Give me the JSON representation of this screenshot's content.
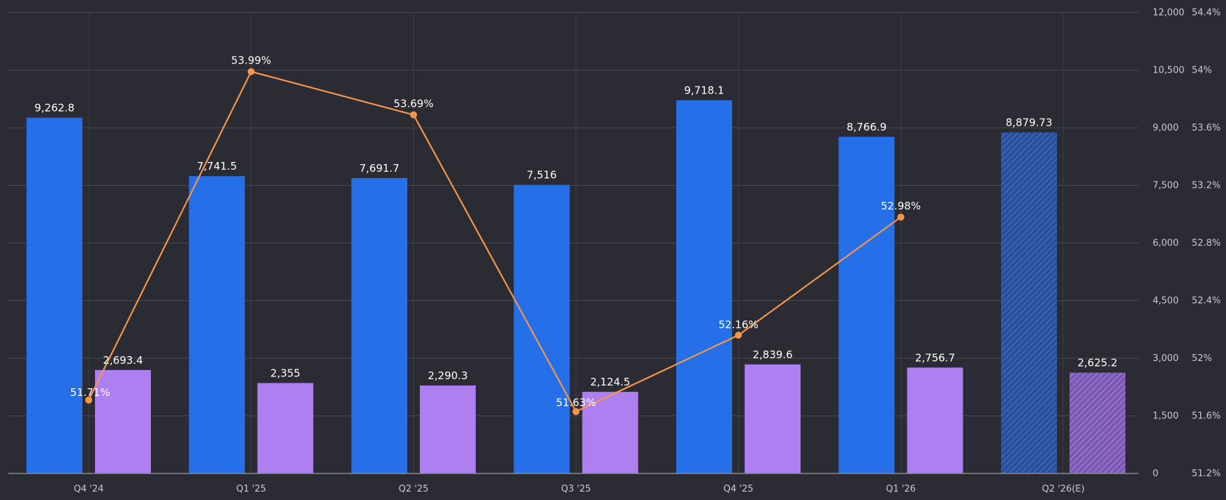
{
  "chart_data": {
    "type": "bar",
    "categories": [
      "Q4 '24",
      "Q1 '25",
      "Q2 '25",
      "Q3 '25",
      "Q4 '25",
      "Q1 '26",
      "Q2 '26(E)"
    ],
    "estimate_categories": [
      "Q2 '26(E)"
    ],
    "series": [
      {
        "values": [
          9262.8,
          7741.5,
          7691.7,
          7516,
          9718.1,
          8766.9,
          8879.73
        ],
        "labels": [
          "9,262.8",
          "7,741.5",
          "7,691.7",
          "7,516",
          "9,718.1",
          "8,766.9",
          "8,879.73"
        ],
        "color": "#2570e8",
        "type": "bar",
        "axis": "left"
      },
      {
        "values": [
          2693.4,
          2355,
          2290.3,
          2124.5,
          2839.6,
          2756.7,
          2625.2
        ],
        "labels": [
          "2,693.4",
          "2,355",
          "2,290.3",
          "2,124.5",
          "2,839.6",
          "2,756.7",
          "2,625.2"
        ],
        "color": "#ae7ff0",
        "type": "bar",
        "axis": "left"
      },
      {
        "values": [
          51.71,
          53.99,
          53.69,
          51.63,
          52.16,
          52.98,
          null
        ],
        "labels": [
          "51.71%",
          "53.99%",
          "53.69%",
          "51.63%",
          "52.16%",
          "52.98%",
          ""
        ],
        "color": "#f7954a",
        "type": "line",
        "axis": "right"
      }
    ],
    "y_left": {
      "min": 0,
      "max": 12000,
      "ticks": [
        0,
        1500,
        3000,
        4500,
        6000,
        7500,
        9000,
        10500,
        12000
      ],
      "tick_labels": [
        "0",
        "1,500",
        "3,000",
        "4,500",
        "6,000",
        "7,500",
        "9,000",
        "10,500",
        "12,000"
      ]
    },
    "y_right": {
      "min": 51.2,
      "max": 54.4,
      "ticks": [
        51.2,
        51.6,
        52,
        52.4,
        52.8,
        53.2,
        53.6,
        54,
        54.4
      ],
      "tick_labels": [
        "51.2%",
        "51.6%",
        "52%",
        "52.4%",
        "52.8%",
        "53.2%",
        "53.6%",
        "54%",
        "54.4%"
      ]
    },
    "grid": true,
    "background": "#2b2b33",
    "grid_color": "#4a4a55"
  }
}
